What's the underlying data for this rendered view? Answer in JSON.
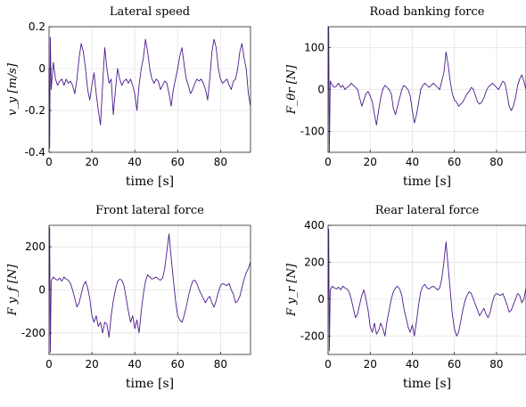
{
  "chart_data": [
    {
      "type": "line",
      "title": "Lateral speed",
      "xlabel": "time [s]",
      "ylabel": "v_y [m/s]",
      "xlim": [
        0,
        94
      ],
      "ylim": [
        -0.4,
        0.2
      ],
      "xticks": [
        0,
        20,
        40,
        60,
        80
      ],
      "yticks": [
        -0.4,
        -0.2,
        0,
        0.2
      ],
      "ytick_labels": [
        "-0.4",
        "-0.2",
        "0",
        "0.2"
      ],
      "grid": true,
      "color": "#4b1a8c",
      "series": [
        {
          "x": [
            0,
            0.3,
            0.6,
            1,
            2,
            3,
            4,
            5,
            6,
            7,
            8,
            9,
            10,
            11,
            12,
            13,
            14,
            15,
            16,
            17,
            18,
            19,
            20,
            21,
            22,
            23,
            24,
            25,
            26,
            27,
            28,
            29,
            30,
            31,
            32,
            33,
            34,
            35,
            36,
            37,
            38,
            39,
            40,
            41,
            42,
            43,
            44,
            45,
            46,
            47,
            48,
            49,
            50,
            51,
            52,
            53,
            54,
            55,
            56,
            57,
            58,
            59,
            60,
            61,
            62,
            63,
            64,
            65,
            66,
            67,
            68,
            69,
            70,
            71,
            72,
            73,
            74,
            75,
            76,
            77,
            78,
            79,
            80,
            81,
            82,
            83,
            84,
            85,
            86,
            87,
            88,
            89,
            90,
            91,
            92,
            93,
            94
          ],
          "y": [
            0.0,
            -0.38,
            0.15,
            -0.1,
            0.03,
            -0.05,
            -0.08,
            -0.06,
            -0.05,
            -0.08,
            -0.05,
            -0.07,
            -0.06,
            -0.08,
            -0.12,
            -0.05,
            0.05,
            0.12,
            0.08,
            0.0,
            -0.1,
            -0.15,
            -0.08,
            -0.02,
            -0.12,
            -0.2,
            -0.27,
            -0.08,
            0.1,
            0.0,
            -0.07,
            -0.05,
            -0.22,
            -0.1,
            0.0,
            -0.05,
            -0.08,
            -0.06,
            -0.05,
            -0.07,
            -0.05,
            -0.08,
            -0.12,
            -0.2,
            -0.08,
            0.0,
            0.05,
            0.14,
            0.08,
            0.0,
            -0.05,
            -0.07,
            -0.05,
            -0.06,
            -0.1,
            -0.08,
            -0.06,
            -0.07,
            -0.12,
            -0.18,
            -0.1,
            -0.05,
            0.0,
            0.06,
            0.1,
            0.02,
            -0.05,
            -0.08,
            -0.12,
            -0.1,
            -0.07,
            -0.05,
            -0.06,
            -0.05,
            -0.07,
            -0.1,
            -0.15,
            -0.05,
            0.08,
            0.14,
            0.1,
            0.0,
            -0.05,
            -0.07,
            -0.06,
            -0.05,
            -0.08,
            -0.1,
            -0.06,
            -0.05,
            0.0,
            0.08,
            0.12,
            0.05,
            0.0,
            -0.12,
            -0.18
          ]
        }
      ]
    },
    {
      "type": "line",
      "title": "Road banking force",
      "xlabel": "time [s]",
      "ylabel": "F_θr [N]",
      "xlim": [
        0,
        94
      ],
      "ylim": [
        -150,
        150
      ],
      "xticks": [
        0,
        20,
        40,
        60,
        80
      ],
      "yticks": [
        -100,
        0,
        100
      ],
      "ytick_labels": [
        "-100",
        "0",
        "100"
      ],
      "grid": true,
      "color": "#4b1a8c",
      "series": [
        {
          "x": [
            0,
            0.3,
            0.6,
            1,
            2,
            3,
            4,
            5,
            6,
            7,
            8,
            9,
            10,
            11,
            12,
            13,
            14,
            15,
            16,
            17,
            18,
            19,
            20,
            21,
            22,
            23,
            24,
            25,
            26,
            27,
            28,
            29,
            30,
            31,
            32,
            33,
            34,
            35,
            36,
            37,
            38,
            39,
            40,
            41,
            42,
            43,
            44,
            45,
            46,
            47,
            48,
            49,
            50,
            51,
            52,
            53,
            54,
            55,
            56,
            57,
            58,
            59,
            60,
            61,
            62,
            63,
            64,
            65,
            66,
            67,
            68,
            69,
            70,
            71,
            72,
            73,
            74,
            75,
            76,
            77,
            78,
            79,
            80,
            81,
            82,
            83,
            84,
            85,
            86,
            87,
            88,
            89,
            90,
            91,
            92,
            93,
            94
          ],
          "y": [
            0,
            150,
            -150,
            20,
            10,
            5,
            8,
            15,
            5,
            10,
            0,
            5,
            8,
            15,
            10,
            5,
            0,
            -20,
            -40,
            -25,
            -10,
            -5,
            -15,
            -30,
            -60,
            -85,
            -50,
            -20,
            0,
            10,
            5,
            0,
            -10,
            -45,
            -60,
            -40,
            -20,
            0,
            10,
            5,
            0,
            -15,
            -50,
            -80,
            -60,
            -30,
            0,
            10,
            15,
            10,
            5,
            10,
            15,
            10,
            5,
            0,
            20,
            40,
            90,
            60,
            20,
            -10,
            -25,
            -30,
            -40,
            -35,
            -30,
            -20,
            -10,
            -5,
            5,
            0,
            -15,
            -30,
            -35,
            -30,
            -20,
            -5,
            5,
            10,
            15,
            10,
            5,
            0,
            10,
            20,
            15,
            -10,
            -40,
            -50,
            -40,
            -20,
            10,
            25,
            35,
            20,
            0
          ]
        }
      ]
    },
    {
      "type": "line",
      "title": "Front lateral force",
      "xlabel": "time [s]",
      "ylabel": "F y_f [N]",
      "xlim": [
        0,
        94
      ],
      "ylim": [
        -300,
        300
      ],
      "xticks": [
        0,
        20,
        40,
        60,
        80
      ],
      "yticks": [
        -200,
        0,
        200
      ],
      "ytick_labels": [
        "-200",
        "0",
        "200"
      ],
      "grid": true,
      "color": "#4b1a8c",
      "series": [
        {
          "x": [
            0,
            0.3,
            0.6,
            1,
            2,
            3,
            4,
            5,
            6,
            7,
            8,
            9,
            10,
            11,
            12,
            13,
            14,
            15,
            16,
            17,
            18,
            19,
            20,
            21,
            22,
            23,
            24,
            25,
            26,
            27,
            28,
            29,
            30,
            31,
            32,
            33,
            34,
            35,
            36,
            37,
            38,
            39,
            40,
            41,
            42,
            43,
            44,
            45,
            46,
            47,
            48,
            49,
            50,
            51,
            52,
            53,
            54,
            55,
            56,
            57,
            58,
            59,
            60,
            61,
            62,
            63,
            64,
            65,
            66,
            67,
            68,
            69,
            70,
            71,
            72,
            73,
            74,
            75,
            76,
            77,
            78,
            79,
            80,
            81,
            82,
            83,
            84,
            85,
            86,
            87,
            88,
            89,
            90,
            91,
            92,
            93,
            94
          ],
          "y": [
            0,
            290,
            -290,
            40,
            60,
            50,
            45,
            55,
            40,
            60,
            50,
            45,
            30,
            0,
            -40,
            -80,
            -60,
            -20,
            20,
            40,
            10,
            -40,
            -120,
            -150,
            -120,
            -170,
            -150,
            -200,
            -150,
            -160,
            -220,
            -120,
            -50,
            0,
            40,
            50,
            45,
            20,
            -40,
            -100,
            -150,
            -120,
            -180,
            -140,
            -200,
            -100,
            -20,
            40,
            70,
            60,
            50,
            55,
            60,
            50,
            45,
            55,
            100,
            180,
            260,
            150,
            50,
            -50,
            -120,
            -140,
            -150,
            -120,
            -80,
            -30,
            10,
            40,
            45,
            30,
            0,
            -20,
            -40,
            -60,
            -40,
            -30,
            -60,
            -80,
            -50,
            -10,
            20,
            30,
            25,
            20,
            30,
            0,
            -20,
            -60,
            -50,
            -30,
            10,
            50,
            80,
            100,
            130
          ]
        }
      ]
    },
    {
      "type": "line",
      "title": "Rear lateral force",
      "xlabel": "time [s]",
      "ylabel": "F y_r [N]",
      "xlim": [
        0,
        94
      ],
      "ylim": [
        -300,
        400
      ],
      "xticks": [
        0,
        20,
        40,
        60,
        80
      ],
      "yticks": [
        -200,
        0,
        200,
        400
      ],
      "ytick_labels": [
        "-200",
        "0",
        "200",
        "400"
      ],
      "grid": true,
      "color": "#4b1a8c",
      "series": [
        {
          "x": [
            0,
            0.3,
            0.6,
            1,
            2,
            3,
            4,
            5,
            6,
            7,
            8,
            9,
            10,
            11,
            12,
            13,
            14,
            15,
            16,
            17,
            18,
            19,
            20,
            21,
            22,
            23,
            24,
            25,
            26,
            27,
            28,
            29,
            30,
            31,
            32,
            33,
            34,
            35,
            36,
            37,
            38,
            39,
            40,
            41,
            42,
            43,
            44,
            45,
            46,
            47,
            48,
            49,
            50,
            51,
            52,
            53,
            54,
            55,
            56,
            57,
            58,
            59,
            60,
            61,
            62,
            63,
            64,
            65,
            66,
            67,
            68,
            69,
            70,
            71,
            72,
            73,
            74,
            75,
            76,
            77,
            78,
            79,
            80,
            81,
            82,
            83,
            84,
            85,
            86,
            87,
            88,
            89,
            90,
            91,
            92,
            93,
            94
          ],
          "y": [
            0,
            380,
            -280,
            50,
            70,
            60,
            55,
            65,
            50,
            70,
            60,
            55,
            40,
            0,
            -50,
            -100,
            -80,
            -30,
            20,
            50,
            0,
            -60,
            -150,
            -180,
            -130,
            -190,
            -170,
            -130,
            -160,
            -200,
            -120,
            -60,
            0,
            40,
            60,
            70,
            55,
            20,
            -50,
            -100,
            -150,
            -180,
            -140,
            -200,
            -120,
            -30,
            40,
            70,
            80,
            60,
            55,
            65,
            70,
            60,
            50,
            60,
            110,
            200,
            310,
            180,
            50,
            -80,
            -160,
            -200,
            -180,
            -120,
            -60,
            -10,
            20,
            40,
            30,
            0,
            -30,
            -60,
            -90,
            -70,
            -50,
            -80,
            -100,
            -70,
            -20,
            20,
            30,
            25,
            20,
            30,
            0,
            -30,
            -70,
            -60,
            -30,
            0,
            30,
            20,
            -20,
            0,
            60
          ]
        }
      ]
    }
  ]
}
